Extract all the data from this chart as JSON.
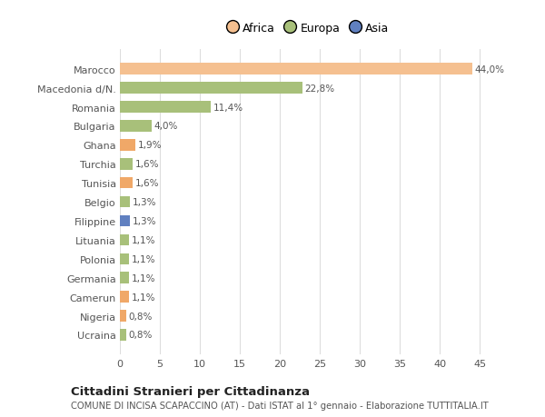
{
  "categories": [
    "Ucraina",
    "Nigeria",
    "Camerun",
    "Germania",
    "Polonia",
    "Lituania",
    "Filippine",
    "Belgio",
    "Tunisia",
    "Turchia",
    "Ghana",
    "Bulgaria",
    "Romania",
    "Macedonia d/N.",
    "Marocco"
  ],
  "values": [
    0.8,
    0.8,
    1.1,
    1.1,
    1.1,
    1.1,
    1.3,
    1.3,
    1.6,
    1.6,
    1.9,
    4.0,
    11.4,
    22.8,
    44.0
  ],
  "colors": [
    "#a8c07a",
    "#f0a868",
    "#f0a868",
    "#a8c07a",
    "#a8c07a",
    "#a8c07a",
    "#6080c0",
    "#a8c07a",
    "#f0a868",
    "#a8c07a",
    "#f0a868",
    "#a8c07a",
    "#a8c07a",
    "#a8c07a",
    "#f5c090"
  ],
  "labels": [
    "0,8%",
    "0,8%",
    "1,1%",
    "1,1%",
    "1,1%",
    "1,1%",
    "1,3%",
    "1,3%",
    "1,6%",
    "1,6%",
    "1,9%",
    "4,0%",
    "11,4%",
    "22,8%",
    "44,0%"
  ],
  "legend_labels": [
    "Africa",
    "Europa",
    "Asia"
  ],
  "legend_colors": [
    "#f5c090",
    "#a8c07a",
    "#6080c0"
  ],
  "title": "Cittadini Stranieri per Cittadinanza",
  "subtitle": "COMUNE DI INCISA SCAPACCINO (AT) - Dati ISTAT al 1° gennaio - Elaborazione TUTTITALIA.IT",
  "xlim": [
    0,
    47
  ],
  "xticks": [
    0,
    5,
    10,
    15,
    20,
    25,
    30,
    35,
    40,
    45
  ],
  "bg_color": "#ffffff",
  "grid_color": "#dddddd"
}
